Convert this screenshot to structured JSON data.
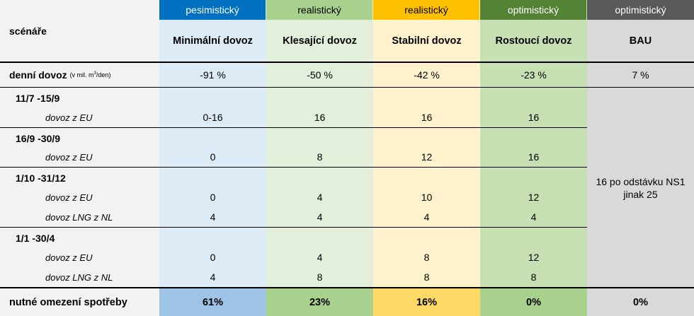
{
  "colors": {
    "pes": "#0070c0",
    "real1": "#a9d18e",
    "real2": "#ffc000",
    "opt": "#548235",
    "bau": "#595959",
    "pes_bg": "#ddebf7",
    "real1_bg": "#e2efda",
    "real2_bg": "#fff2cc",
    "opt_bg": "#c6e0b4",
    "bau_bg": "#d9d9d9",
    "label_bg": "#f2f2f2",
    "pes_foot": "#9dc3e6",
    "real1_foot": "#a9d18e",
    "real2_foot": "#ffd966",
    "opt_foot": "#a9d18e",
    "bau_foot": "#d9d9d9"
  },
  "header": {
    "row_label": "scénáře",
    "types": [
      "pesimistický",
      "realistický",
      "realistický",
      "optimistický",
      "optimistický"
    ],
    "names": [
      "Minimální dovoz",
      "Klesající dovoz",
      "Stabilní dovoz",
      "Rostoucí dovoz",
      "BAU"
    ]
  },
  "daily": {
    "label": "denní dovoz",
    "unit_prefix": "(v mil. m",
    "unit_sup": "3",
    "unit_suffix": "/den)",
    "values": [
      "-91 %",
      "-50 %",
      "-42 %",
      "-23 %",
      "7 %"
    ]
  },
  "periods": [
    {
      "title": "11/7 -15/9",
      "rows": [
        {
          "label": "dovoz z EU",
          "values": [
            "0-16",
            "16",
            "16",
            "16"
          ]
        }
      ]
    },
    {
      "title": "16/9 -30/9",
      "rows": [
        {
          "label": "dovoz z EU",
          "values": [
            "0",
            "8",
            "12",
            "16"
          ]
        }
      ]
    },
    {
      "title": "1/10 -31/12",
      "rows": [
        {
          "label": "dovoz z EU",
          "values": [
            "0",
            "4",
            "10",
            "12"
          ]
        },
        {
          "label": "dovoz LNG z NL",
          "values": [
            "4",
            "4",
            "4",
            "4"
          ]
        }
      ]
    },
    {
      "title": "1/1 -30/4",
      "rows": [
        {
          "label": "dovoz z EU",
          "values": [
            "0",
            "4",
            "8",
            "12"
          ]
        },
        {
          "label": "dovoz LNG z NL",
          "values": [
            "4",
            "8",
            "8",
            "8"
          ]
        }
      ]
    }
  ],
  "bau_note_line1": "16 po odstávku NS1",
  "bau_note_line2": "jinak 25",
  "footer": {
    "label": "nutné omezení spotřeby",
    "values": [
      "61%",
      "23%",
      "16%",
      "0%",
      "0%"
    ]
  }
}
